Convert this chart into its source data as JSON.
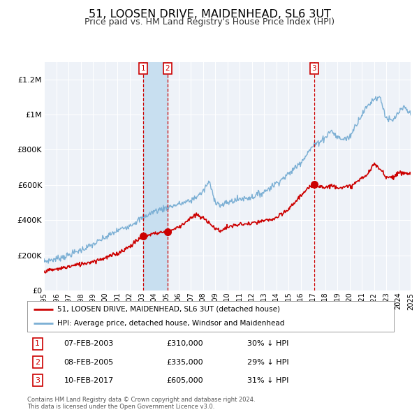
{
  "title": "51, LOOSEN DRIVE, MAIDENHEAD, SL6 3UT",
  "subtitle": "Price paid vs. HM Land Registry's House Price Index (HPI)",
  "title_fontsize": 11.5,
  "subtitle_fontsize": 9,
  "hpi_color": "#7bafd4",
  "hpi_fill_color": "#c8dff0",
  "price_color": "#cc0000",
  "marker_color": "#cc0000",
  "sale_dates": [
    2003.1,
    2005.1,
    2017.1
  ],
  "sale_prices": [
    310000,
    335000,
    605000
  ],
  "sale_labels": [
    "1",
    "2",
    "3"
  ],
  "sale_info": [
    {
      "num": "1",
      "date": "07-FEB-2003",
      "price": "£310,000",
      "hpi": "30% ↓ HPI"
    },
    {
      "num": "2",
      "date": "08-FEB-2005",
      "price": "£335,000",
      "hpi": "29% ↓ HPI"
    },
    {
      "num": "3",
      "date": "10-FEB-2017",
      "price": "£605,000",
      "hpi": "31% ↓ HPI"
    }
  ],
  "legend_line1": "51, LOOSEN DRIVE, MAIDENHEAD, SL6 3UT (detached house)",
  "legend_line2": "HPI: Average price, detached house, Windsor and Maidenhead",
  "footer1": "Contains HM Land Registry data © Crown copyright and database right 2024.",
  "footer2": "This data is licensed under the Open Government Licence v3.0.",
  "ylim": [
    0,
    1300000
  ],
  "yticks": [
    0,
    200000,
    400000,
    600000,
    800000,
    1000000,
    1200000
  ],
  "ytick_labels": [
    "£0",
    "£200K",
    "£400K",
    "£600K",
    "£800K",
    "£1M",
    "£1.2M"
  ],
  "background_color": "#eef2f8",
  "grid_color": "#ffffff",
  "vspan_color": "#c8dff0",
  "vline_color": "#cc0000"
}
